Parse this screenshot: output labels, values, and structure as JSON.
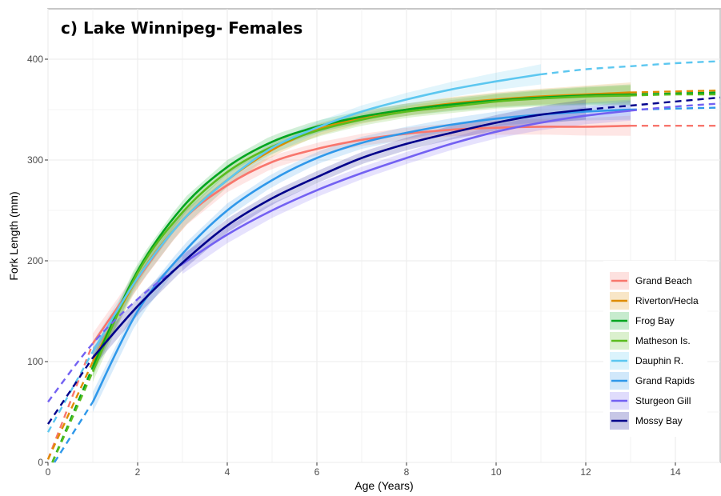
{
  "chart_data": {
    "type": "line",
    "title": "c) Lake Winnipeg- Females",
    "xlabel": "Age (Years)",
    "ylabel": "Fork Length (mm)",
    "xlim": [
      0,
      15
    ],
    "ylim": [
      0,
      450
    ],
    "x_ticks": [
      0,
      2,
      4,
      6,
      8,
      10,
      12,
      14
    ],
    "y_ticks": [
      0,
      100,
      200,
      300,
      400
    ],
    "grid": true,
    "legend_position": "right",
    "series": [
      {
        "name": "Grand Beach",
        "color": "#f8766d",
        "fit_start": 1,
        "fit_end": 13,
        "x": [
          0,
          1,
          2,
          3,
          4,
          5,
          6,
          7,
          8,
          9,
          10,
          11,
          12,
          13,
          14,
          15
        ],
        "y": [
          3,
          118,
          182,
          240,
          275,
          298,
          311,
          320,
          326,
          330,
          332,
          333,
          333,
          334,
          334,
          334
        ]
      },
      {
        "name": "Riverton/Hecla",
        "color": "#de8c00",
        "fit_start": 1,
        "fit_end": 13,
        "x": [
          0,
          1,
          2,
          3,
          4,
          5,
          6,
          7,
          8,
          9,
          10,
          11,
          12,
          13,
          14,
          15
        ],
        "y": [
          3,
          100,
          183,
          240,
          280,
          310,
          330,
          342,
          350,
          356,
          360,
          363,
          365,
          367,
          368,
          369
        ]
      },
      {
        "name": "Frog Bay",
        "color": "#00a51f",
        "fit_start": 1,
        "fit_end": 13,
        "x": [
          0,
          1,
          2,
          3,
          4,
          5,
          6,
          7,
          8,
          9,
          10,
          11,
          12,
          13,
          14,
          15
        ],
        "y": [
          -10,
          95,
          190,
          253,
          293,
          318,
          333,
          343,
          350,
          355,
          359,
          362,
          364,
          365,
          366,
          367
        ]
      },
      {
        "name": "Matheson Is.",
        "color": "#5bbc1e",
        "fit_start": 1,
        "fit_end": 13,
        "x": [
          0,
          1,
          2,
          3,
          4,
          5,
          6,
          7,
          8,
          9,
          10,
          11,
          12,
          13,
          14,
          15
        ],
        "y": [
          -10,
          90,
          188,
          248,
          288,
          313,
          329,
          340,
          348,
          353,
          358,
          361,
          363,
          364,
          365,
          365
        ]
      },
      {
        "name": "Dauphin R.",
        "color": "#5cc7f0",
        "fit_start": 1,
        "fit_end": 11,
        "x": [
          0,
          1,
          2,
          3,
          4,
          5,
          6,
          7,
          8,
          9,
          10,
          11,
          12,
          13,
          14,
          15
        ],
        "y": [
          30,
          110,
          183,
          240,
          280,
          312,
          332,
          348,
          360,
          370,
          378,
          385,
          390,
          393,
          396,
          398
        ]
      },
      {
        "name": "Grand Rapids",
        "color": "#2f98ea",
        "fit_start": 1,
        "fit_end": 13,
        "x": [
          0,
          1,
          2,
          3,
          4,
          5,
          6,
          7,
          8,
          9,
          10,
          11,
          12,
          13,
          14,
          15
        ],
        "y": [
          -10,
          60,
          150,
          207,
          250,
          280,
          302,
          317,
          327,
          335,
          341,
          345,
          348,
          350,
          351,
          352
        ]
      },
      {
        "name": "Sturgeon Gill",
        "color": "#7361f2",
        "fit_start": 3,
        "fit_end": 13,
        "x": [
          0,
          1,
          2,
          3,
          4,
          5,
          6,
          7,
          8,
          9,
          10,
          11,
          12,
          13,
          14,
          15
        ],
        "y": [
          60,
          118,
          162,
          197,
          226,
          250,
          270,
          287,
          302,
          316,
          328,
          337,
          344,
          349,
          353,
          356
        ]
      },
      {
        "name": "Mossy Bay",
        "color": "#00008b",
        "fit_start": 1,
        "fit_end": 12,
        "x": [
          0,
          1,
          2,
          3,
          4,
          5,
          6,
          7,
          8,
          9,
          10,
          11,
          12,
          13,
          14,
          15
        ],
        "y": [
          38,
          104,
          155,
          198,
          235,
          262,
          283,
          302,
          316,
          327,
          337,
          345,
          350,
          354,
          358,
          362
        ]
      }
    ]
  }
}
